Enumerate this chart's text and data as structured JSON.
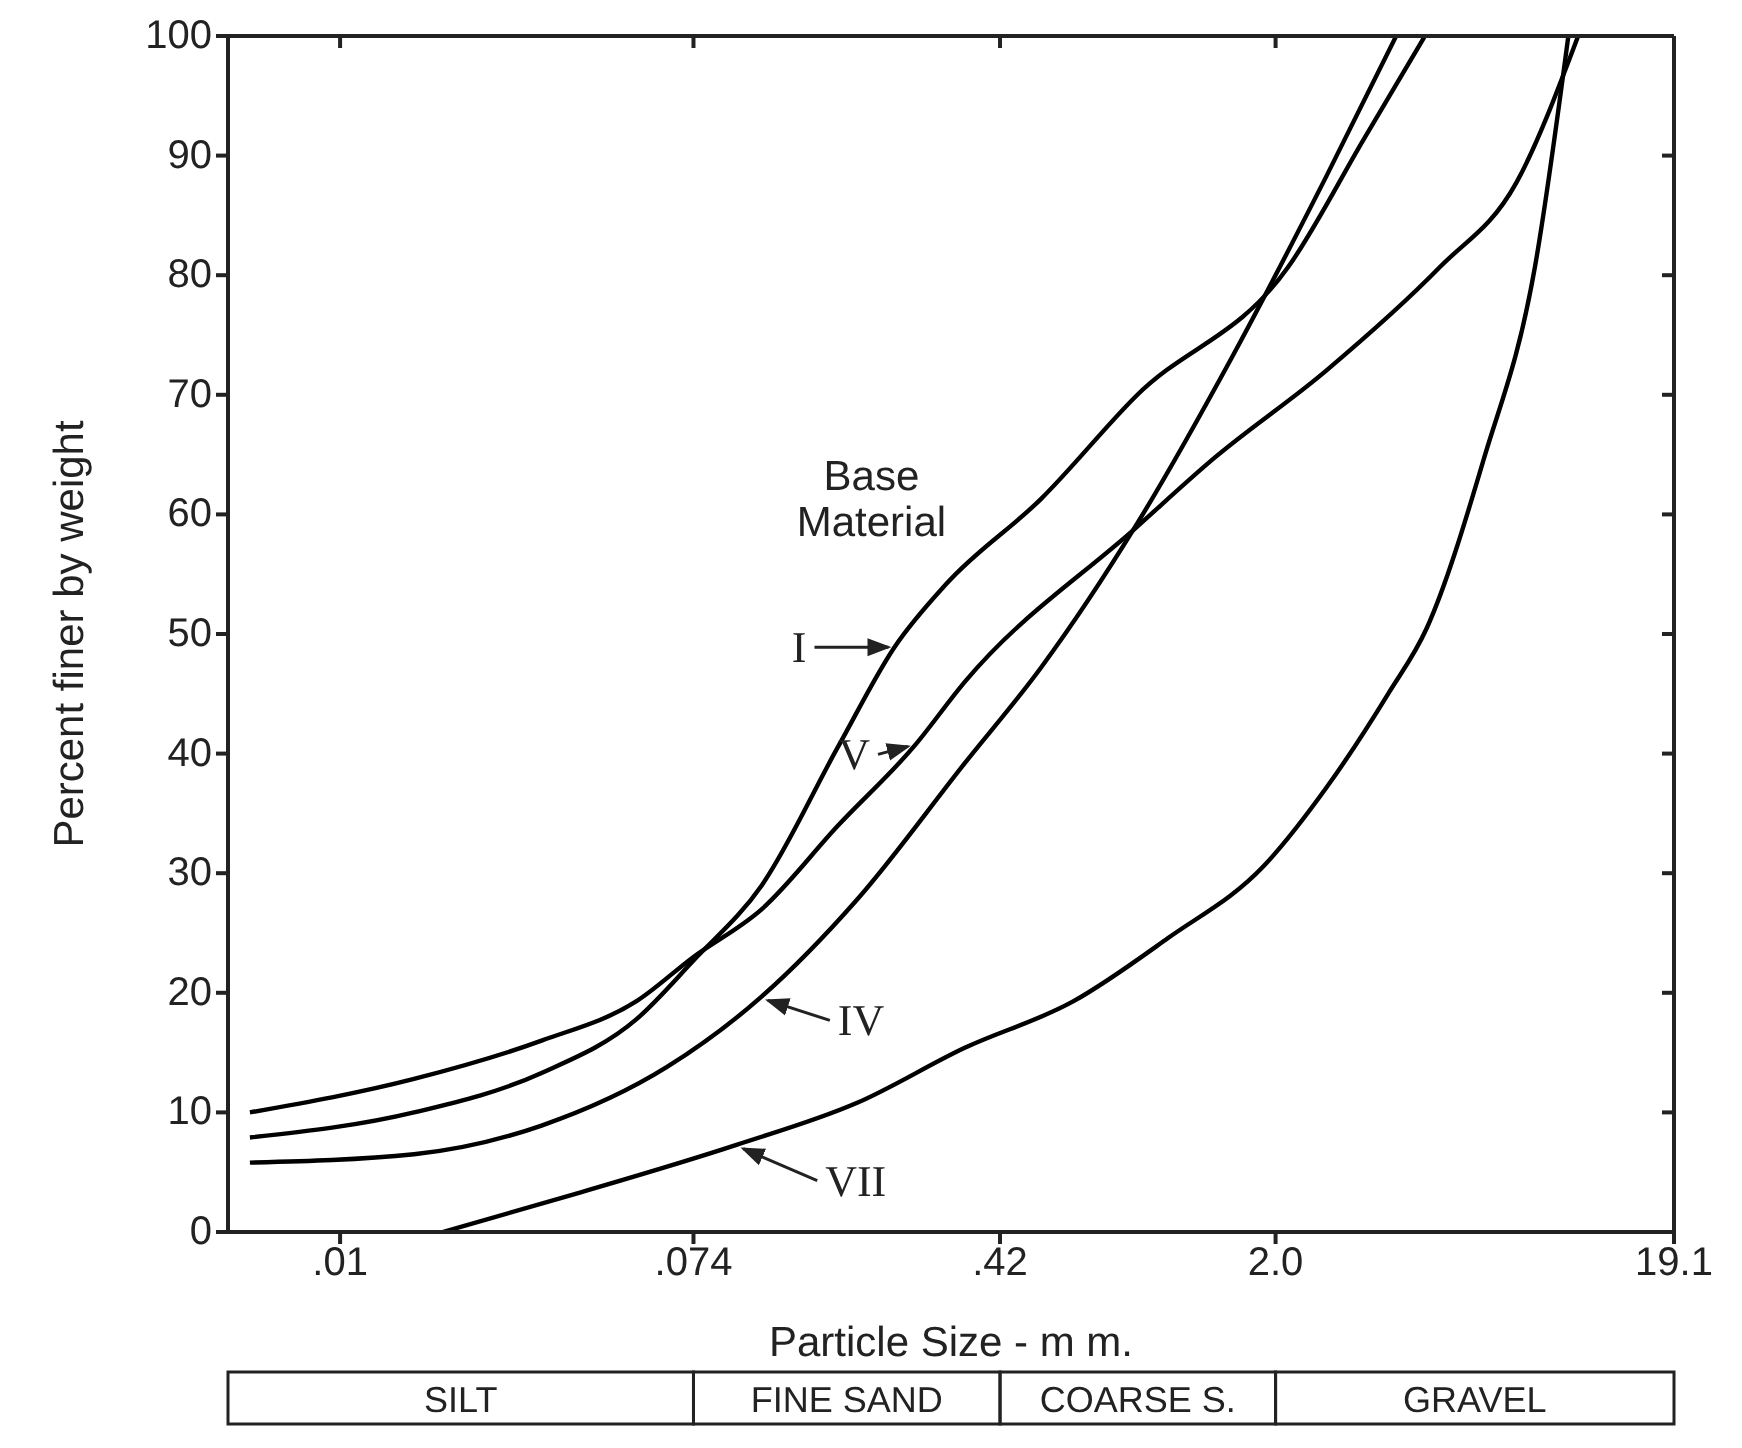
{
  "chart_data": {
    "type": "line",
    "xlabel": "Particle Size - m m.",
    "ylabel": "Percent finer by weight",
    "log": "x",
    "xlim": [
      0.0053,
      19.1
    ],
    "xticks": [
      {
        "value": 0.01,
        "label": ".01"
      },
      {
        "value": 0.074,
        "label": ".074"
      },
      {
        "value": 0.42,
        "label": ".42"
      },
      {
        "value": 2.0,
        "label": "2.0"
      },
      19.1
    ],
    "ylim": [
      0,
      100
    ],
    "yticks": [
      0,
      10,
      20,
      30,
      40,
      50,
      60,
      70,
      80,
      90,
      100
    ],
    "grid": false,
    "marker": "none",
    "line_style": "solid",
    "annotations": [
      "Base Material",
      "SILT",
      "FINE SAND",
      "COARSE S.",
      "GRAVEL"
    ],
    "series": [
      {
        "name": "I",
        "color": "#000000",
        "x": [
          0.006,
          0.0152,
          0.0313,
          0.0536,
          0.074,
          0.109,
          0.168,
          0.231,
          0.31,
          0.53,
          0.908,
          2.15,
          3.3,
          4.66
        ],
        "values": [
          7.9,
          10,
          13.3,
          17.8,
          22.7,
          29,
          40.6,
          48.9,
          54.2,
          61.3,
          69.9,
          80.7,
          91.4,
          100
        ]
      },
      {
        "name": "V",
        "color": "#000000",
        "x": [
          0.006,
          0.0152,
          0.0313,
          0.0536,
          0.074,
          0.109,
          0.168,
          0.258,
          0.344,
          0.908,
          1.4,
          2.66,
          5.08,
          7.81,
          11.1
        ],
        "values": [
          10,
          12.8,
          16,
          19.3,
          23,
          27,
          34,
          40.6,
          46,
          58.9,
          64.6,
          72,
          80.7,
          87.7,
          100
        ]
      },
      {
        "name": "IV",
        "color": "#000000",
        "x": [
          0.006,
          0.0152,
          0.0313,
          0.0637,
          0.109,
          0.187,
          0.344,
          0.53,
          0.908,
          1.56,
          2.66,
          3.96
        ],
        "values": [
          5.8,
          6.5,
          8.9,
          13.8,
          19.7,
          27.8,
          39.2,
          47.2,
          59.1,
          73.1,
          88.2,
          100
        ]
      },
      {
        "name": "VII",
        "color": "#000000",
        "x": [
          0.0179,
          0.0372,
          0.0948,
          0.187,
          0.344,
          0.637,
          1.09,
          1.87,
          2.66,
          3.8,
          4.71,
          6.5,
          8.69,
          10.5
        ],
        "values": [
          0,
          3.1,
          7.3,
          10.8,
          15.4,
          19.3,
          24.6,
          30.6,
          37.1,
          45.1,
          50.5,
          64.6,
          80.7,
          100
        ]
      }
    ]
  }
}
